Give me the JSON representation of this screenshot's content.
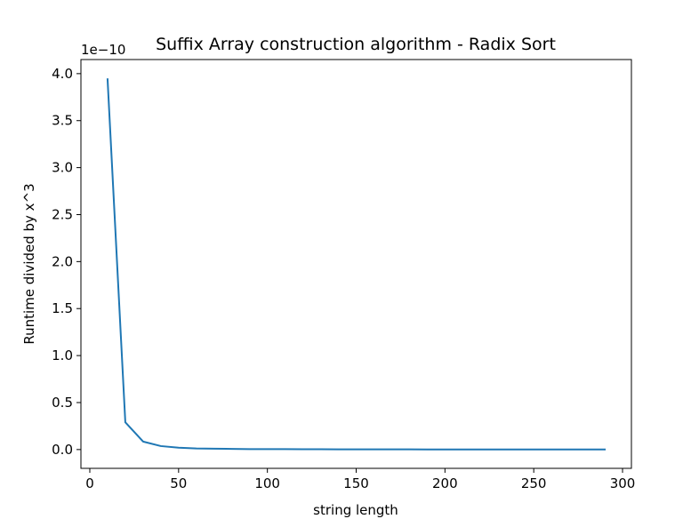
{
  "chart_data": {
    "type": "line",
    "title": "Suffix Array construction algorithm - Radix Sort",
    "xlabel": "string length",
    "ylabel": "Runtime divided by x^3",
    "y_offset_text": "1e−10",
    "xlim": [
      -5,
      305
    ],
    "ylim": [
      -0.2,
      4.15
    ],
    "x_ticks": [
      0,
      50,
      100,
      150,
      200,
      250,
      300
    ],
    "x_tick_labels": [
      "0",
      "50",
      "100",
      "150",
      "200",
      "250",
      "300"
    ],
    "y_ticks": [
      0.0,
      0.5,
      1.0,
      1.5,
      2.0,
      2.5,
      3.0,
      3.5,
      4.0
    ],
    "y_tick_labels": [
      "0.0",
      "0.5",
      "1.0",
      "1.5",
      "2.0",
      "2.5",
      "3.0",
      "3.5",
      "4.0"
    ],
    "grid": false,
    "line_color": "#1f77b4",
    "series": [
      {
        "x": [
          10,
          20,
          30,
          40,
          50,
          60,
          70,
          80,
          90,
          100,
          110,
          120,
          130,
          140,
          150,
          160,
          170,
          180,
          190,
          200,
          210,
          220,
          230,
          240,
          250,
          260,
          270,
          280,
          290
        ],
        "values": [
          3.94,
          0.29,
          0.085,
          0.037,
          0.02,
          0.012,
          0.009,
          0.007,
          0.005,
          0.004,
          0.004,
          0.003,
          0.003,
          0.002,
          0.002,
          0.002,
          0.002,
          0.002,
          0.001,
          0.001,
          0.001,
          0.001,
          0.001,
          0.001,
          0.001,
          0.001,
          0.001,
          0.001,
          0.001
        ]
      }
    ]
  }
}
